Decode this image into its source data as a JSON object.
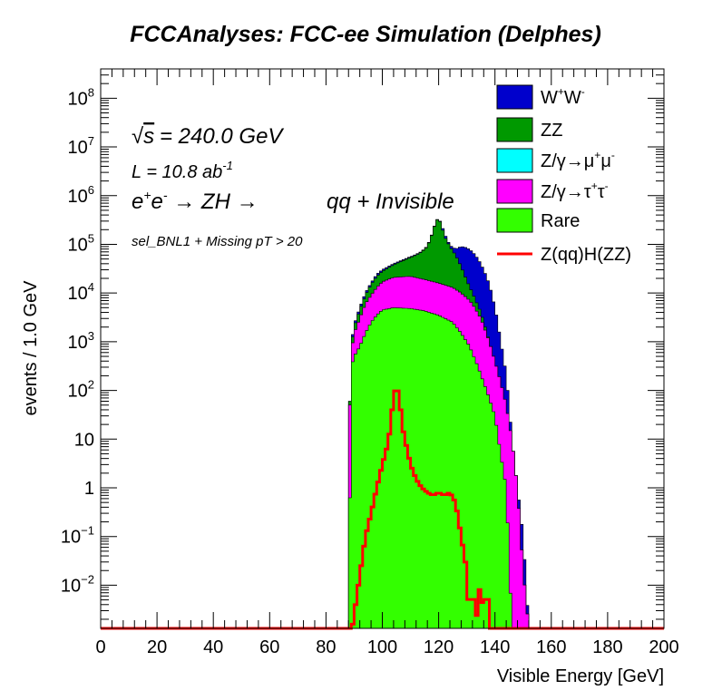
{
  "chart_data": {
    "type": "area",
    "title": "FCCAnalyses: FCC-ee Simulation (Delphes)",
    "xlabel": "Visible Energy [GeV]",
    "ylabel": "events / 1.0 GeV",
    "xlim": [
      0,
      200
    ],
    "ylim": [
      0.0013,
      400000000
    ],
    "yscale": "log",
    "grid": false,
    "legend_position": "top-right",
    "x_ticks": [
      "0",
      "20",
      "40",
      "60",
      "80",
      "100",
      "120",
      "140",
      "160",
      "180",
      "200"
    ],
    "annotations": {
      "sqrt_s": "= 240.0 GeV",
      "lumi": "L = 10.8 ab",
      "lumi_sup": "-1",
      "process": "qq + Invisible",
      "selection": "sel_BNL1 + Missing pT > 20"
    },
    "legend": [
      "W+W-",
      "ZZ",
      "Z/γ→μ+μ-",
      "Z/γ→τ+τ-",
      "Rare",
      "Z(qq)H(ZZ)"
    ],
    "series": [
      {
        "name": "Rare",
        "color": "#33ff00",
        "points": [
          [
            88,
            0.0013
          ],
          [
            89,
            300
          ],
          [
            90,
            500
          ],
          [
            92,
            800
          ],
          [
            94,
            1500
          ],
          [
            96,
            2500
          ],
          [
            98,
            3500
          ],
          [
            100,
            4500
          ],
          [
            104,
            5000
          ],
          [
            110,
            4800
          ],
          [
            115,
            4300
          ],
          [
            120,
            3500
          ],
          [
            125,
            2500
          ],
          [
            128,
            1500
          ],
          [
            131,
            800
          ],
          [
            134,
            300
          ],
          [
            137,
            100
          ],
          [
            140,
            30
          ],
          [
            142,
            5
          ],
          [
            144,
            1
          ],
          [
            146,
            0.0013
          ]
        ]
      },
      {
        "name": "Z/γ→τ+τ-",
        "color": "#ff00ff",
        "points": [
          [
            88,
            0.0013
          ],
          [
            88.5,
            50
          ],
          [
            89,
            600
          ],
          [
            90,
            1500
          ],
          [
            92,
            3000
          ],
          [
            94,
            6000
          ],
          [
            96,
            9000
          ],
          [
            98,
            13000
          ],
          [
            100,
            17000
          ],
          [
            104,
            21000
          ],
          [
            110,
            22000
          ],
          [
            115,
            19000
          ],
          [
            120,
            16000
          ],
          [
            125,
            13000
          ],
          [
            128,
            10000
          ],
          [
            130,
            8000
          ],
          [
            132,
            6000
          ],
          [
            135,
            3000
          ],
          [
            138,
            1000
          ],
          [
            140,
            400
          ],
          [
            142,
            150
          ],
          [
            144,
            50
          ],
          [
            146,
            10
          ],
          [
            148,
            1
          ],
          [
            150,
            0.02
          ],
          [
            152,
            0.0013
          ]
        ]
      },
      {
        "name": "Z/γ→μ+μ-",
        "color": "#00ffff",
        "points": []
      },
      {
        "name": "ZZ",
        "color": "#009900",
        "points": [
          [
            88,
            0.0013
          ],
          [
            88.5,
            60
          ],
          [
            89,
            800
          ],
          [
            90,
            2000
          ],
          [
            92,
            4500
          ],
          [
            94,
            9000
          ],
          [
            96,
            15000
          ],
          [
            98,
            22000
          ],
          [
            100,
            28000
          ],
          [
            104,
            38000
          ],
          [
            108,
            48000
          ],
          [
            112,
            60000
          ],
          [
            114,
            70000
          ],
          [
            116,
            90000
          ],
          [
            118,
            180000
          ],
          [
            119,
            300000
          ],
          [
            120,
            340000
          ],
          [
            121,
            250000
          ],
          [
            122,
            150000
          ],
          [
            124,
            90000
          ],
          [
            126,
            60000
          ],
          [
            128,
            35000
          ],
          [
            130,
            18000
          ],
          [
            132,
            10000
          ],
          [
            135,
            4000
          ],
          [
            138,
            1000
          ],
          [
            140,
            400
          ],
          [
            142,
            150
          ],
          [
            144,
            50
          ],
          [
            146,
            10
          ],
          [
            148,
            1
          ],
          [
            150,
            0.02
          ],
          [
            152,
            0.0013
          ]
        ]
      },
      {
        "name": "W+W-",
        "color": "#0000cc",
        "points": [
          [
            88,
            0.0013
          ],
          [
            88.5,
            60
          ],
          [
            89,
            900
          ],
          [
            90,
            2200
          ],
          [
            92,
            5000
          ],
          [
            94,
            10000
          ],
          [
            96,
            16000
          ],
          [
            98,
            24000
          ],
          [
            100,
            30000
          ],
          [
            104,
            40000
          ],
          [
            108,
            50000
          ],
          [
            112,
            62000
          ],
          [
            114,
            72000
          ],
          [
            116,
            92000
          ],
          [
            118,
            185000
          ],
          [
            119,
            305000
          ],
          [
            120,
            345000
          ],
          [
            121,
            260000
          ],
          [
            122,
            170000
          ],
          [
            124,
            95000
          ],
          [
            126,
            80000
          ],
          [
            128,
            90000
          ],
          [
            130,
            85000
          ],
          [
            132,
            70000
          ],
          [
            134,
            50000
          ],
          [
            136,
            30000
          ],
          [
            138,
            15000
          ],
          [
            140,
            5000
          ],
          [
            141,
            2500
          ],
          [
            142,
            1000
          ],
          [
            143,
            500
          ],
          [
            144,
            200
          ],
          [
            145,
            50
          ],
          [
            146,
            10
          ],
          [
            148,
            1
          ],
          [
            150,
            0.1
          ],
          [
            152,
            0.0013
          ]
        ]
      },
      {
        "name": "Z(qq)H(ZZ)",
        "color": "#ff0000",
        "points": [
          [
            88,
            0.0013
          ],
          [
            89,
            0.001
          ],
          [
            94,
            0.1
          ],
          [
            96,
            0.3
          ],
          [
            98,
            1
          ],
          [
            100,
            3
          ],
          [
            102,
            8
          ],
          [
            103,
            20
          ],
          [
            104,
            80
          ],
          [
            105,
            120
          ],
          [
            106,
            80
          ],
          [
            107,
            20
          ],
          [
            108,
            10
          ],
          [
            110,
            3
          ],
          [
            112,
            1.5
          ],
          [
            114,
            1
          ],
          [
            116,
            0.8
          ],
          [
            118,
            0.7
          ],
          [
            120,
            0.8
          ],
          [
            122,
            0.7
          ],
          [
            124,
            0.8
          ],
          [
            126,
            0.5
          ],
          [
            128,
            0.1
          ],
          [
            130,
            0.02
          ],
          [
            131,
            0.0013
          ],
          [
            132,
            0.02
          ],
          [
            133,
            0.0013
          ],
          [
            135,
            0.015
          ],
          [
            136,
            0.0013
          ],
          [
            137,
            0.02
          ],
          [
            138,
            0.0013
          ],
          [
            140,
            0.0013
          ]
        ]
      }
    ]
  }
}
